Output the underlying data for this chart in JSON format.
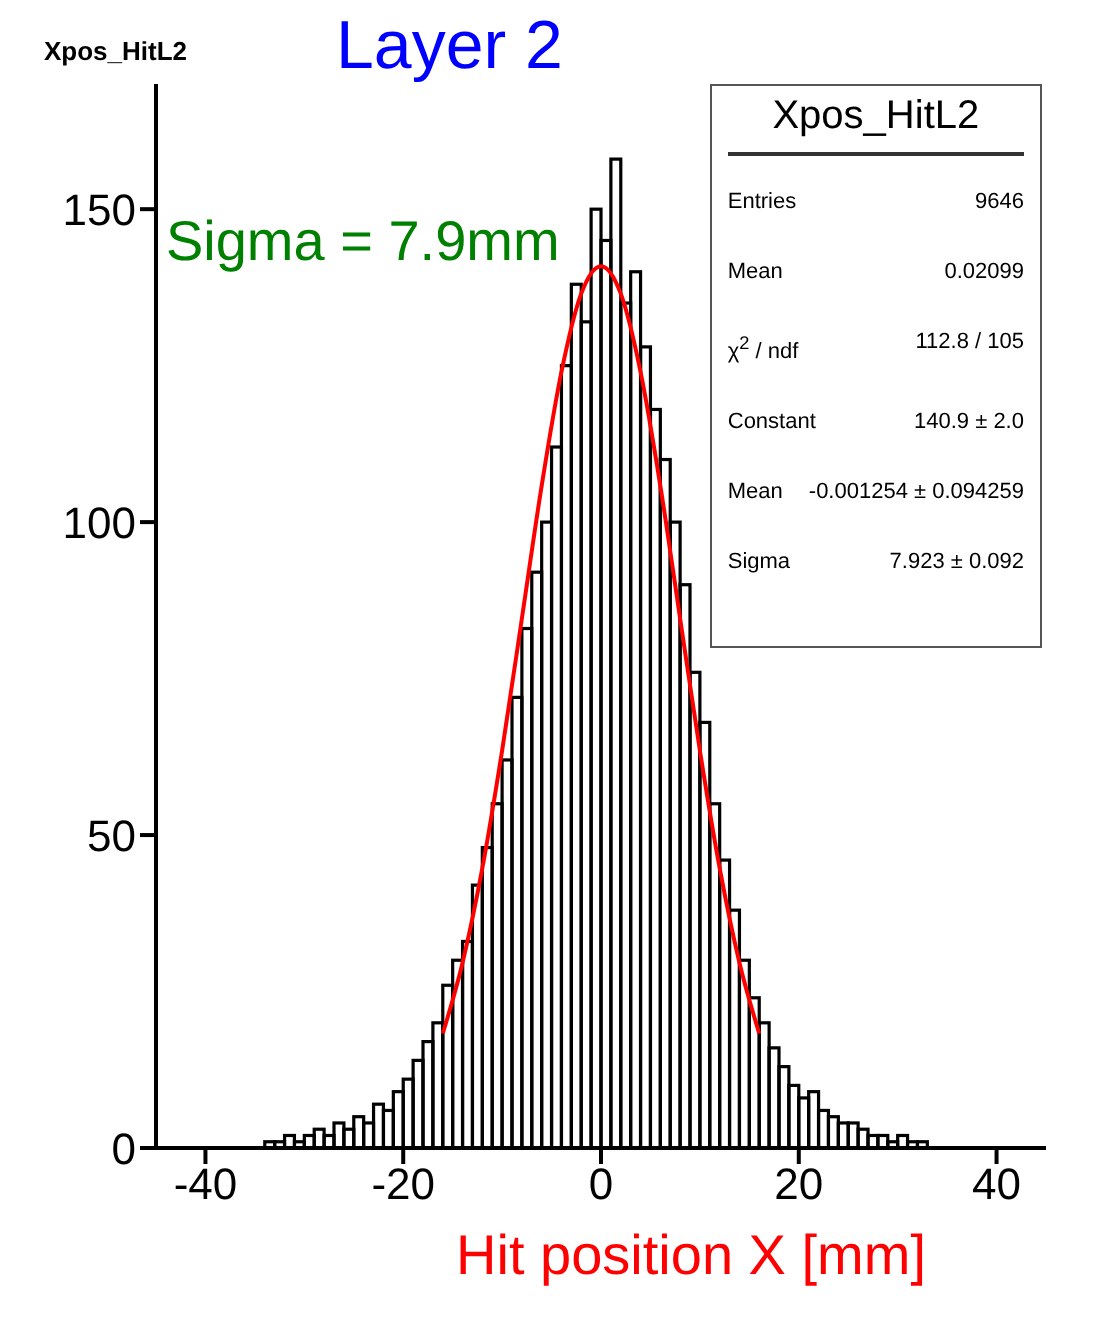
{
  "chart_data": {
    "type": "histogram",
    "title": "Xpos_HitL2",
    "subtitle": "Layer 2",
    "xlabel": "Hit position X [mm]",
    "bins": [
      -35,
      -34,
      -33,
      -32,
      -31,
      -30,
      -29,
      -28,
      -27,
      -26,
      -25,
      -24,
      -23,
      -22,
      -21,
      -20,
      -19,
      -18,
      -17,
      -16,
      -15,
      -14,
      -13,
      -12,
      -11,
      -10,
      -9,
      -8,
      -7,
      -6,
      -5,
      -4,
      -3,
      -2,
      -1,
      0,
      1,
      2,
      3,
      4,
      5,
      6,
      7,
      8,
      9,
      10,
      11,
      12,
      13,
      14,
      15,
      16,
      17,
      18,
      19,
      20,
      21,
      22,
      23,
      24,
      25,
      26,
      27,
      28,
      29,
      30,
      31,
      32,
      33,
      34,
      35
    ],
    "values": [
      0,
      1,
      1,
      2,
      1,
      2,
      3,
      2,
      4,
      3,
      5,
      4,
      7,
      6,
      9,
      11,
      14,
      17,
      20,
      26,
      30,
      33,
      42,
      48,
      55,
      62,
      72,
      83,
      92,
      100,
      112,
      125,
      138,
      132,
      150,
      145,
      158,
      135,
      140,
      128,
      118,
      110,
      100,
      90,
      76,
      68,
      55,
      46,
      38,
      30,
      24,
      20,
      16,
      13,
      10,
      8,
      9,
      6,
      5,
      4,
      4,
      3,
      2,
      2,
      1,
      2,
      1,
      1,
      0,
      0
    ],
    "color": "#000000",
    "series": [
      {
        "type": "line",
        "color": "#ff0000",
        "x": [
          -16,
          -14,
          -12,
          -10,
          -8,
          -6,
          -4,
          -2,
          0,
          2,
          4,
          6,
          8,
          10,
          12,
          14,
          16
        ],
        "values": [
          18.3,
          29.6,
          44.7,
          63.5,
          84.6,
          105.8,
          124.0,
          136.5,
          140.9,
          136.5,
          124.0,
          105.8,
          84.6,
          63.5,
          44.7,
          29.6,
          18.3
        ]
      }
    ],
    "xlim": [
      -45,
      45
    ],
    "xticks": [
      -40,
      -20,
      0,
      20,
      40
    ],
    "ylim": [
      0,
      170
    ],
    "yticks": [
      0,
      50,
      100,
      150
    ],
    "grid": false,
    "marker": "none",
    "annotations": [
      "Xpos_HitL2",
      "Entries",
      "9646",
      "Mean",
      "0.02099",
      "χ$^{2}$ / ndf",
      "112.8 / 105",
      "Constant",
      "140.9 ± 2.0",
      "Mean",
      "-0.001254 ± 0.094259",
      "Sigma",
      "7.923 ± 0.092",
      "Sigma = 7.9mm"
    ]
  }
}
